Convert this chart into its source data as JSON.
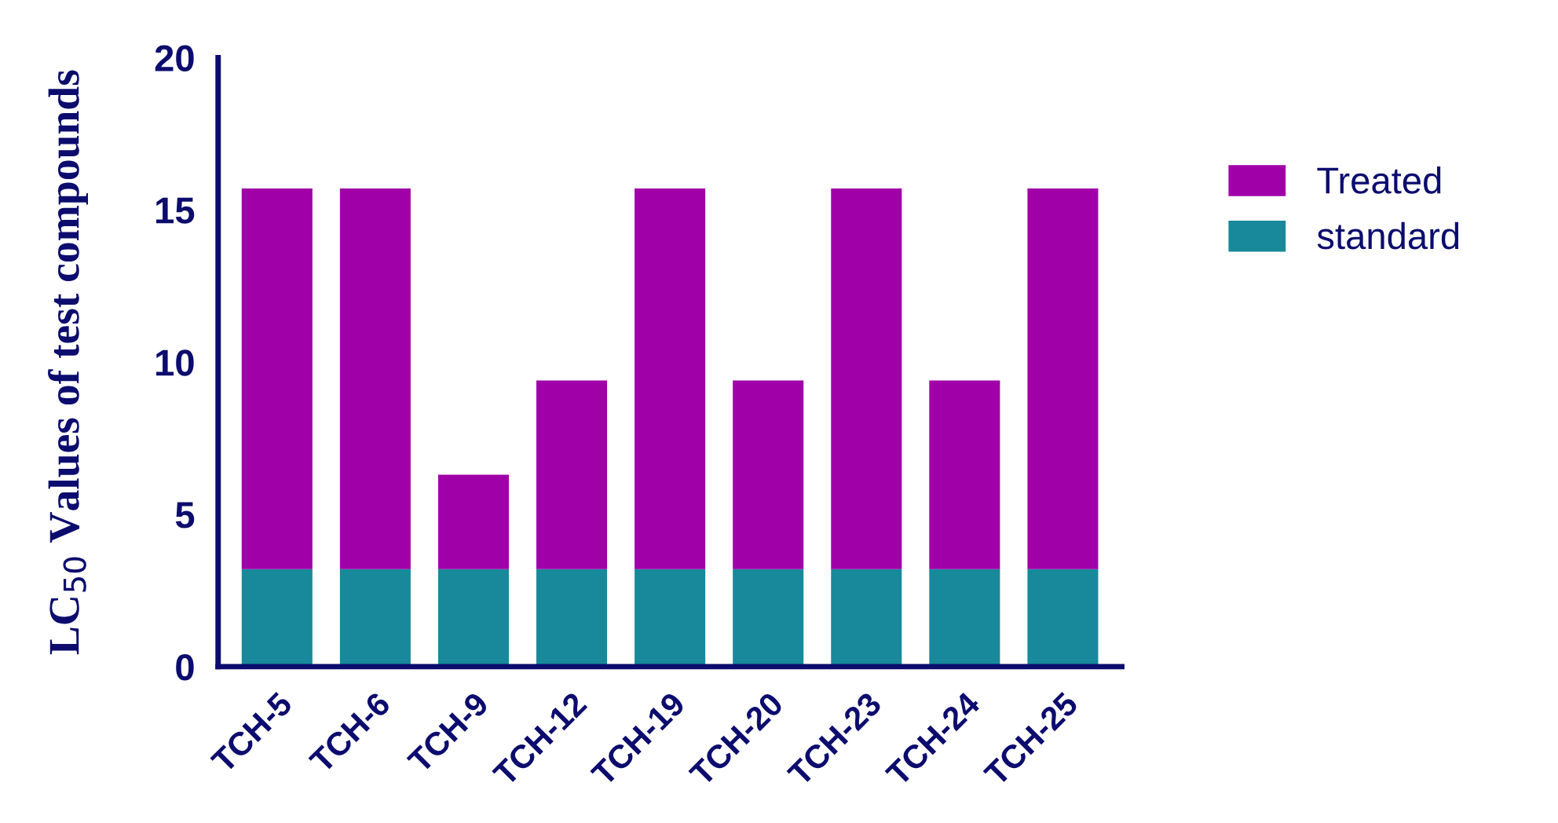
{
  "chart_data": {
    "type": "bar",
    "stacked": true,
    "ylabel": "LC$_{50}$ Values of test compounds",
    "categories": [
      "TCH-5",
      "TCH-6",
      "TCH-9",
      "TCH-12",
      "TCH-19",
      "TCH-20",
      "TCH-23",
      "TCH-24",
      "TCH-25"
    ],
    "series": [
      {
        "name": "standard",
        "color": "#17899a",
        "values": [
          3.2,
          3.2,
          3.2,
          3.2,
          3.2,
          3.2,
          3.2,
          3.2,
          3.2
        ]
      },
      {
        "name": "Treated",
        "color": "#a000a8",
        "values": [
          12.5,
          12.5,
          3.1,
          6.2,
          12.5,
          6.2,
          12.5,
          6.2,
          12.5
        ]
      }
    ],
    "ylim": [
      0,
      20
    ],
    "yticks": [
      0,
      5,
      10,
      15,
      20
    ],
    "grid": false,
    "legend": "top right"
  }
}
